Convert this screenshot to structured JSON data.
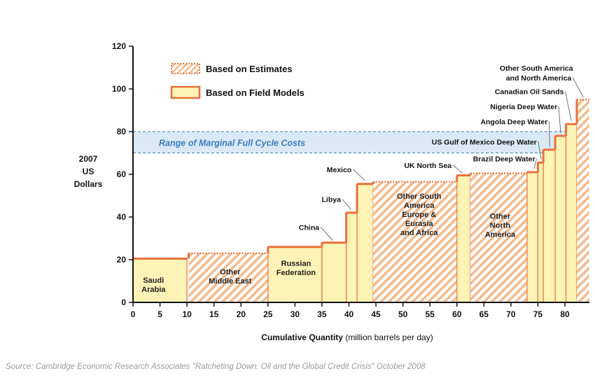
{
  "chart_data": {
    "type": "bar",
    "title": "",
    "ylabel": [
      "2007",
      "US",
      "Dollars"
    ],
    "xlabel_bold": "Cumulative Quantity",
    "xlabel_rest": " (million barrels per day)",
    "xlim": [
      0,
      85
    ],
    "ylim": [
      0,
      120
    ],
    "xticks": [
      0,
      5,
      10,
      15,
      20,
      25,
      30,
      35,
      40,
      45,
      50,
      55,
      60,
      65,
      70,
      75,
      80
    ],
    "yticks": [
      0,
      20,
      40,
      60,
      80,
      100,
      120
    ],
    "legend": {
      "placement": "top-left",
      "entries": [
        {
          "label": "Based on Estimates",
          "style": "estimate"
        },
        {
          "label": "Based on Field Models",
          "style": "field"
        }
      ]
    },
    "band": {
      "y0": 70,
      "y1": 80,
      "label": "Range of Marginal Full Cycle Costs",
      "color": "#3a7cc0"
    },
    "colors": {
      "fill": "#fdf3b6",
      "stroke": "#e8713a",
      "hatch": "#f4b98a",
      "band": "#dbe9f7"
    },
    "segments": [
      {
        "name": "Saudi Arabia",
        "x0": 0,
        "x1": 10,
        "y": 20.5,
        "type": "field",
        "label": [
          "Saudi",
          "Arabia"
        ],
        "label_xy": [
          3.8,
          7
        ]
      },
      {
        "name": "Other Middle East",
        "x0": 10.3,
        "x1": 25,
        "y": 23,
        "type": "estimate",
        "label": [
          "Other",
          "Middle East"
        ],
        "label_xy": [
          18,
          11
        ]
      },
      {
        "name": "Russian Federation",
        "x0": 25,
        "x1": 35,
        "y": 26,
        "type": "field",
        "label": [
          "Russian",
          "Federation"
        ],
        "label_xy": [
          30.2,
          15
        ]
      },
      {
        "name": "China",
        "x0": 35,
        "x1": 39.5,
        "y": 28,
        "type": "field"
      },
      {
        "name": "Libya",
        "x0": 39.5,
        "x1": 41.5,
        "y": 42,
        "type": "field"
      },
      {
        "name": "Mexico",
        "x0": 41.5,
        "x1": 44.5,
        "y": 55.5,
        "type": "field"
      },
      {
        "name": "Other South America Europe & Eurasia and Africa",
        "x0": 44.5,
        "x1": 60,
        "y": 56.5,
        "type": "estimate",
        "label": [
          "Other South",
          "America",
          "Europe &",
          "Eurasia",
          "and Africa"
        ],
        "label_xy": [
          53,
          40
        ]
      },
      {
        "name": "UK North Sea",
        "x0": 60,
        "x1": 62.5,
        "y": 59.5,
        "type": "field"
      },
      {
        "name": "Other North America",
        "x0": 62.5,
        "x1": 73,
        "y": 60.5,
        "type": "estimate",
        "label": [
          "Other",
          "North",
          "America"
        ],
        "label_xy": [
          68,
          35
        ]
      },
      {
        "name": "Brazil Deep Water",
        "x0": 73,
        "x1": 75,
        "y": 61,
        "type": "field"
      },
      {
        "name": "US Gulf of Mexico Deep Water",
        "x0": 75,
        "x1": 76,
        "y": 65.5,
        "type": "field"
      },
      {
        "name": "Angola Deep Water",
        "x0": 76,
        "x1": 78.2,
        "y": 71.5,
        "type": "field"
      },
      {
        "name": "Nigeria Deep Water",
        "x0": 78.2,
        "x1": 80.2,
        "y": 78,
        "type": "field"
      },
      {
        "name": "Canadian Oil Sands",
        "x0": 80.2,
        "x1": 82.2,
        "y": 83.5,
        "type": "field"
      },
      {
        "name": "Other South America and North America",
        "x0": 82.2,
        "x1": 84.5,
        "y": 95,
        "type": "estimate"
      }
    ],
    "callouts": [
      {
        "text": "China",
        "text_xy": [
          34.5,
          34
        ],
        "anchor": "end",
        "to": [
          37,
          29
        ]
      },
      {
        "text": "Libya",
        "text_xy": [
          38.5,
          47
        ],
        "anchor": "end",
        "to": [
          40.4,
          43.5
        ]
      },
      {
        "text": "Mexico",
        "text_xy": [
          40.5,
          61
        ],
        "anchor": "end",
        "to": [
          43,
          57
        ]
      },
      {
        "text": "UK North Sea",
        "text_xy": [
          59,
          63
        ],
        "anchor": "end",
        "to": [
          61,
          60.5
        ]
      },
      {
        "text": "Brazil Deep Water",
        "text_xy": [
          74.5,
          66
        ],
        "anchor": "end",
        "to": [
          74.3,
          62.5
        ]
      },
      {
        "text": "US Gulf of Mexico Deep Water",
        "text_xy": [
          74.8,
          74
        ],
        "anchor": "end",
        "to": [
          75.6,
          67
        ]
      },
      {
        "text": "Angola Deep Water",
        "text_xy": [
          76.8,
          83.5
        ],
        "anchor": "end",
        "to": [
          77.2,
          73
        ]
      },
      {
        "text": "Nigeria Deep Water",
        "text_xy": [
          78.6,
          90.5
        ],
        "anchor": "end",
        "to": [
          79.2,
          79.5
        ]
      },
      {
        "text": "Canadian Oil Sands",
        "text_xy": [
          79.8,
          97.5
        ],
        "anchor": "end",
        "to": [
          81.2,
          85
        ]
      },
      {
        "text": "Other South America",
        "text_xy": [
          81.5,
          108.5
        ],
        "anchor": "end",
        "to": null
      },
      {
        "text": "and North America",
        "text_xy": [
          81.2,
          104
        ],
        "anchor": "end",
        "to": [
          83.4,
          96
        ]
      }
    ],
    "source": "Source: Cambridge Economic Research Associates \"Ratcheting Down: Oil and the Global Credit Crisis\" October 2008"
  }
}
